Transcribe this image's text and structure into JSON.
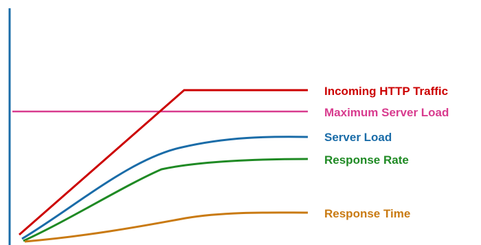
{
  "diagram": {
    "series": [
      {
        "label": "Incoming HTTP Traffic",
        "color": "#cc0000"
      },
      {
        "label": "Maximum Server Load",
        "color": "#d83b8e"
      },
      {
        "label": "Server Load",
        "color": "#1a6ca8"
      },
      {
        "label": "Response Rate",
        "color": "#1f8a24"
      },
      {
        "label": "Response Time",
        "color": "#c97a12"
      }
    ],
    "axis_color": "#1a6ca8"
  }
}
